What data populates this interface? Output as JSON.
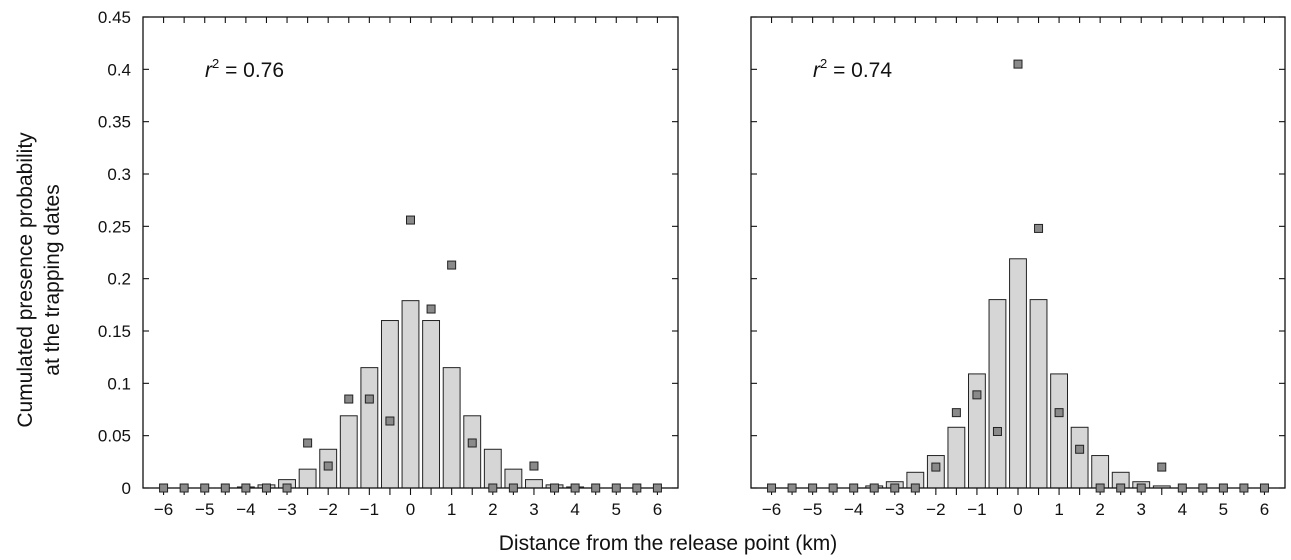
{
  "colors": {
    "bar_fill": "#d6d6d6",
    "point_fill": "#8a8a8a"
  },
  "chart_data": [
    {
      "type": "bar",
      "annotation": {
        "prefix": "r",
        "exponent": "2",
        "value": " = 0.76"
      },
      "x": [
        -6,
        -5.5,
        -5,
        -4.5,
        -4,
        -3.5,
        -3,
        -2.5,
        -2,
        -1.5,
        -1,
        -0.5,
        0,
        0.5,
        1,
        1.5,
        2,
        2.5,
        3,
        3.5,
        4,
        4.5,
        5,
        5.5,
        6
      ],
      "series": [
        {
          "kind": "bar",
          "values": [
            0,
            0,
            0,
            0,
            0.001,
            0.003,
            0.008,
            0.018,
            0.037,
            0.069,
            0.115,
            0.16,
            0.179,
            0.16,
            0.115,
            0.069,
            0.037,
            0.018,
            0.008,
            0.003,
            0.001,
            0,
            0,
            0,
            0
          ]
        },
        {
          "kind": "points",
          "values": [
            0,
            0,
            0,
            0,
            0,
            0,
            0,
            0.043,
            0.021,
            0.085,
            0.085,
            0.064,
            0.256,
            0.171,
            0.213,
            0.043,
            0,
            0,
            0.021,
            0,
            0,
            0,
            0,
            0,
            0
          ]
        }
      ],
      "ylabel_lines": [
        "Cumulated presence probability",
        "at the trapping dates"
      ],
      "yticks": [
        "0",
        "0.05",
        "0.1",
        "0.15",
        "0.2",
        "0.25",
        "0.3",
        "0.35",
        "0.4",
        "0.45"
      ],
      "xticks": [
        "−6",
        "−5",
        "−4",
        "−3",
        "−2",
        "−1",
        "0",
        "1",
        "2",
        "3",
        "4",
        "5",
        "6"
      ],
      "xlim": [
        -6.5,
        6.5
      ],
      "ylim": [
        0,
        0.45
      ]
    },
    {
      "type": "bar",
      "annotation": {
        "prefix": "r",
        "exponent": "2",
        "value": " = 0.74"
      },
      "x": [
        -6,
        -5.5,
        -5,
        -4.5,
        -4,
        -3.5,
        -3,
        -2.5,
        -2,
        -1.5,
        -1,
        -0.5,
        0,
        0.5,
        1,
        1.5,
        2,
        2.5,
        3,
        3.5,
        4,
        4.5,
        5,
        5.5,
        6
      ],
      "series": [
        {
          "kind": "bar",
          "values": [
            0,
            0,
            0,
            0,
            0,
            0.002,
            0.006,
            0.015,
            0.031,
            0.058,
            0.109,
            0.18,
            0.219,
            0.18,
            0.109,
            0.058,
            0.031,
            0.015,
            0.006,
            0.002,
            0,
            0,
            0,
            0,
            0
          ]
        },
        {
          "kind": "points",
          "values": [
            0,
            0,
            0,
            0,
            0,
            0,
            0,
            0,
            0.02,
            0.072,
            0.089,
            0.054,
            0.405,
            0.248,
            0.072,
            0.037,
            0,
            0,
            0,
            0.02,
            0,
            0,
            0,
            0,
            0
          ]
        }
      ],
      "xticks": [
        "−6",
        "−5",
        "−4",
        "−3",
        "−2",
        "−1",
        "0",
        "1",
        "2",
        "3",
        "4",
        "5",
        "6"
      ],
      "xlim": [
        -6.5,
        6.5
      ],
      "ylim": [
        0,
        0.45
      ]
    }
  ],
  "shared": {
    "xlabel": "Distance from the release point (km)"
  }
}
